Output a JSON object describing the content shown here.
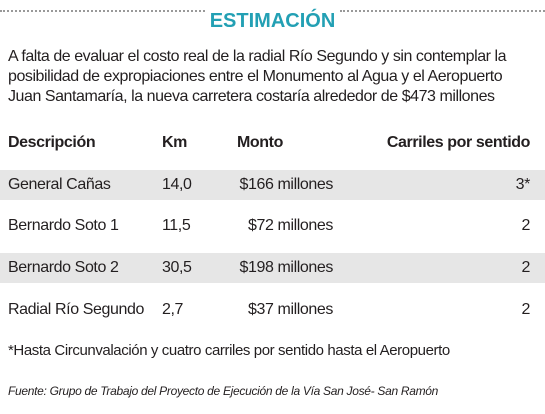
{
  "header": {
    "title": "ESTIMACIÓN"
  },
  "intro": [
    "A falta de evaluar el costo real de la radial Río Segundo y sin contemplar la",
    "posibilidad de expropiaciones entre el Monumento al Agua y el Aeropuerto",
    "Juan Santamaría, la nueva carretera costaría alrededor de $473 millones"
  ],
  "table": {
    "columns": [
      "Descripción",
      "Km",
      "Monto",
      "Carriles por sentido"
    ],
    "rows": [
      [
        "General Cañas",
        "14,0",
        "$166 millones",
        "3*"
      ],
      [
        "Bernardo Soto 1",
        "11,5",
        "$72 millones",
        "2"
      ],
      [
        "Bernardo Soto 2",
        "30,5",
        "$198 millones",
        "2"
      ],
      [
        "Radial Río Segundo",
        "2,7",
        "$37 millones",
        "2"
      ]
    ]
  },
  "footnote": "*Hasta Circunvalación y cuatro carriles por sentido hasta el Aeropuerto",
  "source": "Fuente: Grupo de Trabajo del Proyecto de Ejecución de la Vía San José- San Ramón"
}
